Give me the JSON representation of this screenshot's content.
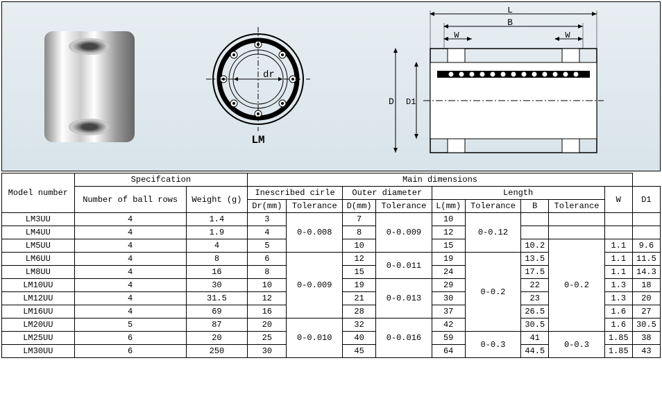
{
  "diagram": {
    "lm_label": "LM",
    "dr_label": "dr",
    "labels": {
      "L": "L",
      "B": "B",
      "W": "W",
      "D": "D",
      "D1": "D1"
    }
  },
  "headers": {
    "model": "Model number",
    "spec": "Specifcation",
    "main": "Main dimensions",
    "rows": "Number of ball rows",
    "weight": "Weight (g)",
    "inscribed": "Inescribed cirle",
    "outer": "Outer diameter",
    "length": "Length",
    "W": "W",
    "D1": "D1",
    "Dr": "Dr(mm)",
    "tol": "Tolerance",
    "D": "D(mm)",
    "L": "L(mm)",
    "B": "B",
    "Tol": "Tolerance"
  },
  "tol_groups": {
    "dr": [
      "0-0.008",
      "0-0.009",
      "0-0.010"
    ],
    "d": [
      "0-0.009",
      "0-0.011",
      "0-0.013",
      "0-0.016"
    ],
    "l": [
      "0-0.12",
      "0-0.2",
      "0-0.3"
    ],
    "b": [
      "0-0.2",
      "0-0.3"
    ]
  },
  "rows": [
    {
      "m": "LM3UU",
      "n": "4",
      "w": "1.4",
      "dr": "3",
      "D": "7",
      "L": "10",
      "B": "",
      "W": "",
      "D1": ""
    },
    {
      "m": "LM4UU",
      "n": "4",
      "w": "1.9",
      "dr": "4",
      "D": "8",
      "L": "12",
      "B": "",
      "W": "",
      "D1": ""
    },
    {
      "m": "LM5UU",
      "n": "4",
      "w": "4",
      "dr": "5",
      "D": "10",
      "L": "15",
      "B": "10.2",
      "W": "1.1",
      "D1": "9.6"
    },
    {
      "m": "LM6UU",
      "n": "4",
      "w": "8",
      "dr": "6",
      "D": "12",
      "L": "19",
      "B": "13.5",
      "W": "1.1",
      "D1": "11.5"
    },
    {
      "m": "LM8UU",
      "n": "4",
      "w": "16",
      "dr": "8",
      "D": "15",
      "L": "24",
      "B": "17.5",
      "W": "1.1",
      "D1": "14.3"
    },
    {
      "m": "LM10UU",
      "n": "4",
      "w": "30",
      "dr": "10",
      "D": "19",
      "L": "29",
      "B": "22",
      "W": "1.3",
      "D1": "18"
    },
    {
      "m": "LM12UU",
      "n": "4",
      "w": "31.5",
      "dr": "12",
      "D": "21",
      "L": "30",
      "B": "23",
      "W": "1.3",
      "D1": "20"
    },
    {
      "m": "LM16UU",
      "n": "4",
      "w": "69",
      "dr": "16",
      "D": "28",
      "L": "37",
      "B": "26.5",
      "W": "1.6",
      "D1": "27"
    },
    {
      "m": "LM20UU",
      "n": "5",
      "w": "87",
      "dr": "20",
      "D": "32",
      "L": "42",
      "B": "30.5",
      "W": "1.6",
      "D1": "30.5"
    },
    {
      "m": "LM25UU",
      "n": "6",
      "w": "20",
      "dr": "25",
      "D": "40",
      "L": "59",
      "B": "41",
      "W": "1.85",
      "D1": "38"
    },
    {
      "m": "LM30UU",
      "n": "6",
      "w": "250",
      "dr": "30",
      "D": "45",
      "L": "64",
      "B": "44.5",
      "W": "1.85",
      "D1": "43"
    }
  ]
}
